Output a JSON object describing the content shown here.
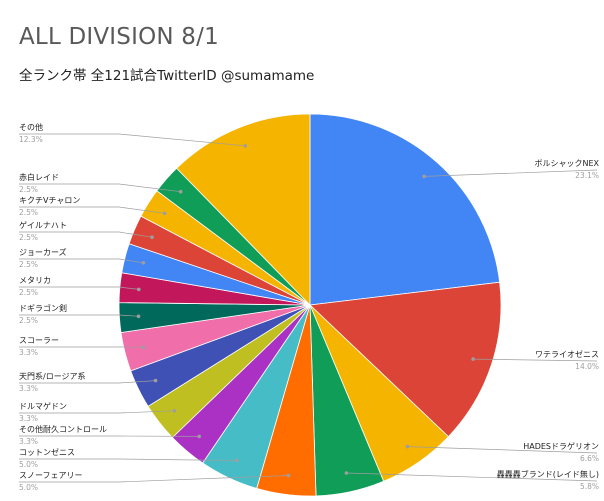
{
  "title": "ALL DIVISION 8/1",
  "subtitle": "全ランク帯 全121試合TwitterID @sumamame",
  "chart_data": {
    "type": "pie",
    "slices": [
      {
        "label": "ボルシャックNEX",
        "value": 23.1,
        "pct": "23.1%",
        "color": "#4285f4"
      },
      {
        "label": "ワテライオゼニス",
        "value": 14.0,
        "pct": "14.0%",
        "color": "#db4437"
      },
      {
        "label": "HADESドラゲリオン",
        "value": 6.6,
        "pct": "6.6%",
        "color": "#f4b400"
      },
      {
        "label": "轟轟轟ブランド(レイド無し)",
        "value": 5.8,
        "pct": "5.8%",
        "color": "#0f9d58"
      },
      {
        "label": "スノーフェアリー",
        "value": 5.0,
        "pct": "5.0%",
        "color": "#ff6d01"
      },
      {
        "label": "コットンゼニス",
        "value": 5.0,
        "pct": "5.0%",
        "color": "#46bdc6"
      },
      {
        "label": "その他耐久コントロール",
        "value": 3.3,
        "pct": "3.3%",
        "color": "#ab30c4"
      },
      {
        "label": "ドルマゲドン",
        "value": 3.3,
        "pct": "3.3%",
        "color": "#bfbf22"
      },
      {
        "label": "天門系/ロージア系",
        "value": 3.3,
        "pct": "3.3%",
        "color": "#3f51b5"
      },
      {
        "label": "スコーラー",
        "value": 3.3,
        "pct": "3.3%",
        "color": "#f06eaa"
      },
      {
        "label": "ドギラゴン剣",
        "value": 2.5,
        "pct": "2.5%",
        "color": "#00695c"
      },
      {
        "label": "メタリカ",
        "value": 2.5,
        "pct": "2.5%",
        "color": "#c2185b"
      },
      {
        "label": "ジョーカーズ",
        "value": 2.5,
        "pct": "2.5%",
        "color": "#4285f4"
      },
      {
        "label": "ゲイルナハト",
        "value": 2.5,
        "pct": "2.5%",
        "color": "#db4437"
      },
      {
        "label": "キクチVチャロン",
        "value": 2.5,
        "pct": "2.5%",
        "color": "#f4b400"
      },
      {
        "label": "赤白レイド",
        "value": 2.5,
        "pct": "2.5%",
        "color": "#0f9d58"
      },
      {
        "label": "その他",
        "value": 12.3,
        "pct": "12.3%",
        "color": "#f4b400"
      }
    ]
  }
}
